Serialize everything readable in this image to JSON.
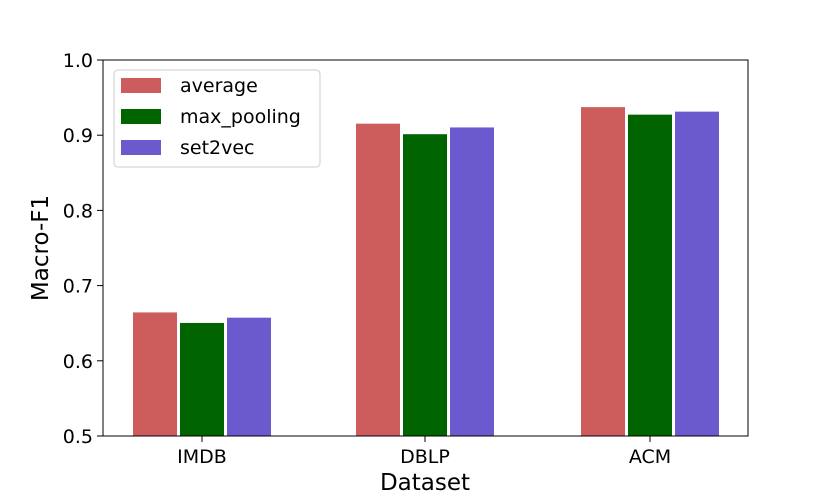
{
  "chart_data": {
    "type": "bar",
    "xlabel": "Dataset",
    "ylabel": "Macro-F1",
    "categories": [
      "IMDB",
      "DBLP",
      "ACM"
    ],
    "series": [
      {
        "name": "average",
        "values": [
          0.665,
          0.916,
          0.938
        ],
        "color": "#cd5c5c"
      },
      {
        "name": "max_pooling",
        "values": [
          0.651,
          0.902,
          0.928
        ],
        "color": "#006400"
      },
      {
        "name": "set2vec",
        "values": [
          0.658,
          0.911,
          0.932
        ],
        "color": "#6a5acd"
      }
    ],
    "ylim": [
      0.5,
      1.0
    ],
    "yticks": [
      "0.5",
      "0.6",
      "0.7",
      "0.8",
      "0.9",
      "1.0"
    ],
    "grid": false,
    "legend_position": "top-left"
  }
}
